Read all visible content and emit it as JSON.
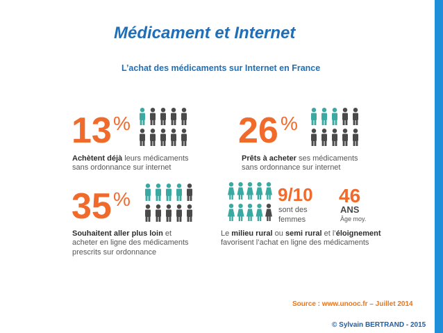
{
  "slide": {
    "title": "Médicament et Internet",
    "subtitle": "L’achat des médicaments sur Internet en France",
    "source": "Source : www.unooc.fr  – Juillet 2014",
    "copyright": "© Sylvain BERTRAND - 2015"
  },
  "stats": [
    {
      "value": "13",
      "unit": "%",
      "line1_bold": "Achètent déjà",
      "line1_rest": " leurs médicaments",
      "line2": "sans ordonnance sur internet",
      "highlighted_people": 1
    },
    {
      "value": "26",
      "unit": "%",
      "line1_bold": "Prêts à acheter",
      "line1_rest": " ses médicaments",
      "line2": "sans ordonnance sur internet",
      "highlighted_people": 3
    },
    {
      "value": "35",
      "unit": "%",
      "line1_bold": "Souhaitent aller plus loin",
      "line1_rest": " et",
      "line2": "acheter en ligne des médicaments",
      "line3": "prescrits sur ordonnance",
      "highlighted_people": 4
    }
  ],
  "women_stat": {
    "fraction": "9/10",
    "label_line1": "sont des",
    "label_line2": "femmes",
    "women_highlighted": 9
  },
  "age_stat": {
    "value": "46",
    "unit": "ANS",
    "label": "Âge moy."
  },
  "rural_caption": {
    "p1": "Le ",
    "b1": "milieu rural",
    "p2": " ou ",
    "b2": "semi rural",
    "p3": " et l’",
    "b3": "éloignement",
    "line2": "favorisent l’achat en ligne des médicaments"
  },
  "colors": {
    "accent": "#ef6a2b",
    "teal": "#3aa9a2",
    "gray": "#4a4a4a",
    "title_blue": "#1f6fb8",
    "bar_blue": "#1e8fd8",
    "source_orange": "#e8761c"
  },
  "icons": [
    "person-icon",
    "woman-icon"
  ]
}
